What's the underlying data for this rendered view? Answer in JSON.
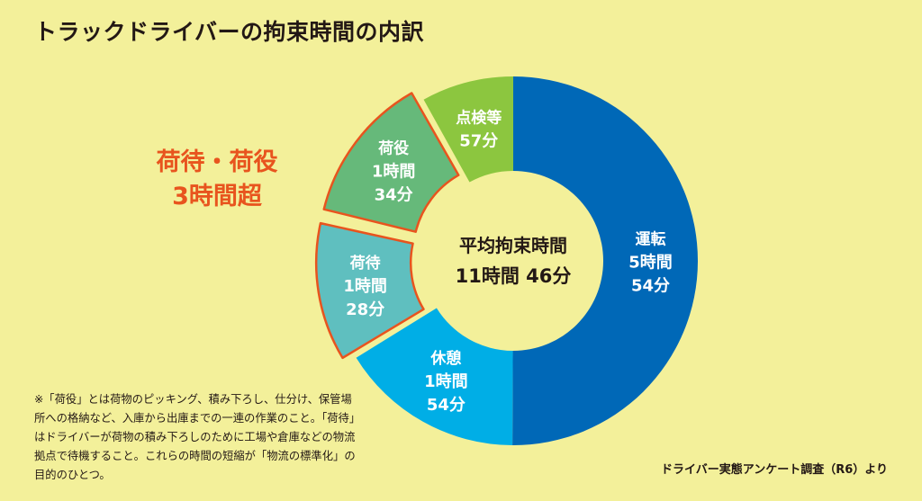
{
  "title": "トラックドライバーの拘束時間の内訳",
  "callout": {
    "line1": "荷待・荷役",
    "line2": "3時間超",
    "color": "#e8541e"
  },
  "note": "※「荷役」とは荷物のピッキング、積み下ろし、仕分け、保管場所への格納など、入庫から出庫までの一連の作業のこと。「荷待」はドライバーが荷物の積み下ろしのために工場や倉庫などの物流拠点で待機すること。これらの時間の短縮が「物流の標準化」の目的のひとつ。",
  "source": "ドライバー実態アンケート調査（R6）より",
  "chart_data": {
    "type": "pie",
    "variant": "donut",
    "title": "トラックドライバーの拘束時間の内訳",
    "center": {
      "line1": "平均拘束時間",
      "line2": "11時間 46分",
      "total_minutes": 706
    },
    "order": "clockwise from top",
    "slices": [
      {
        "name": "運転",
        "line2": "5時間",
        "line3": "54分",
        "minutes": 354,
        "color": "#0068b7",
        "exploded": false
      },
      {
        "name": "休憩",
        "line2": "1時間",
        "line3": "54分",
        "minutes": 114,
        "color": "#00aee6",
        "exploded": false
      },
      {
        "name": "荷待",
        "line2": "1時間",
        "line3": "28分",
        "minutes": 88,
        "color": "#5fbfbf",
        "exploded": true
      },
      {
        "name": "荷役",
        "line2": "1時間",
        "line3": "34分",
        "minutes": 94,
        "color": "#66b97a",
        "exploded": true
      },
      {
        "name": "点検等",
        "line2": "57分",
        "line3": "",
        "minutes": 57,
        "color": "#8cc63f",
        "exploded": false
      }
    ],
    "exploded_outline_color": "#e8541e"
  }
}
